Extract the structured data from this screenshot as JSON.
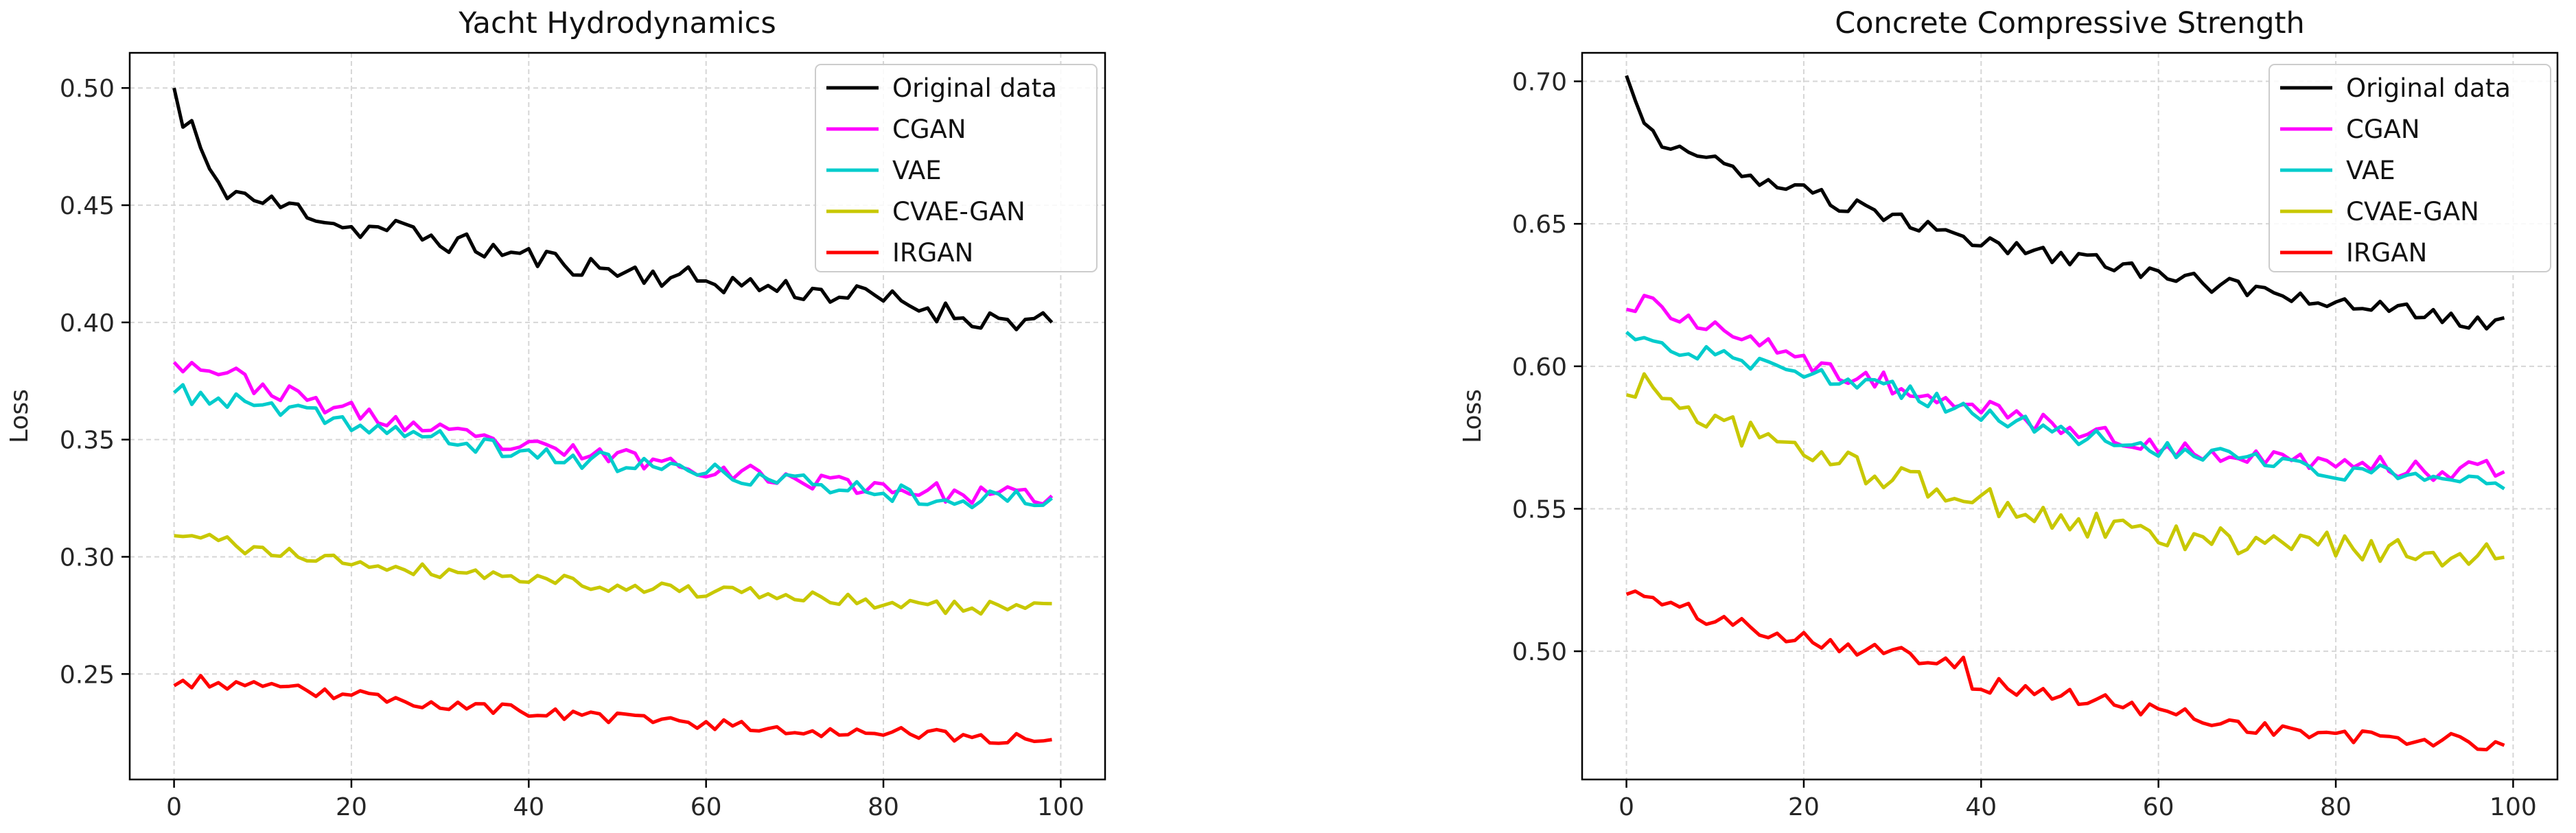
{
  "figure": {
    "description_free": true
  },
  "chart_data": [
    {
      "type": "line",
      "title": "Yacht Hydrodynamics",
      "xlabel": "",
      "ylabel": "Loss",
      "xlim": [
        -5,
        105
      ],
      "ylim": [
        0.205,
        0.515
      ],
      "xticks": [
        0,
        20,
        40,
        60,
        80,
        100
      ],
      "xtick_labels": [
        "0",
        "20",
        "40",
        "60",
        "80",
        "100"
      ],
      "yticks": [
        0.25,
        0.3,
        0.35,
        0.4,
        0.45,
        0.5
      ],
      "ytick_labels": [
        "0.25",
        "0.30",
        "0.35",
        "0.40",
        "0.45",
        "0.50"
      ],
      "grid": true,
      "legend_position": "top-right",
      "series": [
        {
          "name": "Original data",
          "color": "#000000",
          "start": 0.5,
          "end": 0.4,
          "amplitude": 0.005,
          "seed": 11,
          "anchors": [
            [
              0,
              0.5
            ],
            [
              1,
              0.483
            ],
            [
              2,
              0.485
            ],
            [
              4,
              0.462
            ],
            [
              6,
              0.457
            ],
            [
              10,
              0.451
            ],
            [
              15,
              0.448
            ],
            [
              20,
              0.44
            ],
            [
              25,
              0.44
            ],
            [
              30,
              0.435
            ],
            [
              40,
              0.428
            ],
            [
              50,
              0.422
            ],
            [
              60,
              0.418
            ],
            [
              70,
              0.414
            ],
            [
              80,
              0.41
            ],
            [
              90,
              0.402
            ],
            [
              99,
              0.4
            ]
          ]
        },
        {
          "name": "CGAN",
          "color": "#ff00ff",
          "start": 0.383,
          "end": 0.325,
          "amplitude": 0.004,
          "seed": 23,
          "anchors": [
            [
              0,
              0.383
            ],
            [
              5,
              0.38
            ],
            [
              10,
              0.372
            ],
            [
              20,
              0.362
            ],
            [
              30,
              0.353
            ],
            [
              40,
              0.346
            ],
            [
              50,
              0.343
            ],
            [
              60,
              0.338
            ],
            [
              70,
              0.333
            ],
            [
              80,
              0.33
            ],
            [
              90,
              0.326
            ],
            [
              99,
              0.326
            ]
          ]
        },
        {
          "name": "VAE",
          "color": "#00cccc",
          "start": 0.37,
          "end": 0.325,
          "amplitude": 0.004,
          "seed": 37,
          "anchors": [
            [
              0,
              0.37
            ],
            [
              5,
              0.367
            ],
            [
              10,
              0.364
            ],
            [
              20,
              0.357
            ],
            [
              30,
              0.35
            ],
            [
              40,
              0.344
            ],
            [
              50,
              0.34
            ],
            [
              60,
              0.336
            ],
            [
              70,
              0.332
            ],
            [
              80,
              0.328
            ],
            [
              90,
              0.324
            ],
            [
              99,
              0.325
            ]
          ]
        },
        {
          "name": "CVAE-GAN",
          "color": "#c8c800",
          "start": 0.309,
          "end": 0.28,
          "amplitude": 0.003,
          "seed": 41,
          "anchors": [
            [
              0,
              0.309
            ],
            [
              5,
              0.307
            ],
            [
              10,
              0.302
            ],
            [
              20,
              0.298
            ],
            [
              30,
              0.294
            ],
            [
              40,
              0.291
            ],
            [
              50,
              0.288
            ],
            [
              60,
              0.285
            ],
            [
              70,
              0.283
            ],
            [
              80,
              0.28
            ],
            [
              90,
              0.278
            ],
            [
              99,
              0.28
            ]
          ]
        },
        {
          "name": "IRGAN",
          "color": "#ff0000",
          "start": 0.245,
          "end": 0.222,
          "amplitude": 0.0025,
          "seed": 53,
          "anchors": [
            [
              0,
              0.245
            ],
            [
              3,
              0.247
            ],
            [
              10,
              0.244
            ],
            [
              20,
              0.241
            ],
            [
              30,
              0.237
            ],
            [
              40,
              0.234
            ],
            [
              50,
              0.231
            ],
            [
              60,
              0.229
            ],
            [
              70,
              0.226
            ],
            [
              80,
              0.225
            ],
            [
              90,
              0.223
            ],
            [
              99,
              0.222
            ]
          ]
        }
      ]
    },
    {
      "type": "line",
      "title": "Concrete Compressive Strength",
      "xlabel": "",
      "ylabel": "Loss",
      "xlim": [
        -5,
        105
      ],
      "ylim": [
        0.455,
        0.71
      ],
      "xticks": [
        0,
        20,
        40,
        60,
        80,
        100
      ],
      "xtick_labels": [
        "0",
        "20",
        "40",
        "60",
        "80",
        "100"
      ],
      "yticks": [
        0.5,
        0.55,
        0.6,
        0.65,
        0.7
      ],
      "ytick_labels": [
        "0.50",
        "0.55",
        "0.60",
        "0.65",
        "0.70"
      ],
      "grid": true,
      "legend_position": "top-right",
      "series": [
        {
          "name": "Original data",
          "color": "#000000",
          "start": 0.702,
          "end": 0.617,
          "amplitude": 0.003,
          "seed": 61,
          "anchors": [
            [
              0,
              0.702
            ],
            [
              1,
              0.692
            ],
            [
              2,
              0.683
            ],
            [
              5,
              0.678
            ],
            [
              10,
              0.672
            ],
            [
              15,
              0.664
            ],
            [
              20,
              0.661
            ],
            [
              30,
              0.652
            ],
            [
              40,
              0.644
            ],
            [
              50,
              0.638
            ],
            [
              60,
              0.632
            ],
            [
              70,
              0.627
            ],
            [
              80,
              0.622
            ],
            [
              90,
              0.619
            ],
            [
              95,
              0.615
            ],
            [
              99,
              0.617
            ]
          ]
        },
        {
          "name": "CGAN",
          "color": "#ff00ff",
          "start": 0.62,
          "end": 0.563,
          "amplitude": 0.004,
          "seed": 71,
          "anchors": [
            [
              0,
              0.62
            ],
            [
              2,
              0.624
            ],
            [
              10,
              0.612
            ],
            [
              20,
              0.602
            ],
            [
              30,
              0.594
            ],
            [
              40,
              0.585
            ],
            [
              50,
              0.578
            ],
            [
              60,
              0.572
            ],
            [
              70,
              0.568
            ],
            [
              80,
              0.565
            ],
            [
              90,
              0.564
            ],
            [
              99,
              0.563
            ]
          ]
        },
        {
          "name": "VAE",
          "color": "#00cccc",
          "start": 0.612,
          "end": 0.557,
          "amplitude": 0.003,
          "seed": 83,
          "anchors": [
            [
              0,
              0.612
            ],
            [
              5,
              0.606
            ],
            [
              10,
              0.604
            ],
            [
              20,
              0.598
            ],
            [
              30,
              0.592
            ],
            [
              40,
              0.583
            ],
            [
              50,
              0.576
            ],
            [
              60,
              0.571
            ],
            [
              70,
              0.567
            ],
            [
              80,
              0.563
            ],
            [
              90,
              0.562
            ],
            [
              99,
              0.557
            ]
          ]
        },
        {
          "name": "CVAE-GAN",
          "color": "#c8c800",
          "start": 0.59,
          "end": 0.533,
          "amplitude": 0.005,
          "seed": 97,
          "anchors": [
            [
              0,
              0.59
            ],
            [
              2,
              0.594
            ],
            [
              10,
              0.58
            ],
            [
              20,
              0.57
            ],
            [
              30,
              0.561
            ],
            [
              40,
              0.553
            ],
            [
              50,
              0.545
            ],
            [
              60,
              0.54
            ],
            [
              70,
              0.538
            ],
            [
              80,
              0.537
            ],
            [
              90,
              0.535
            ],
            [
              99,
              0.533
            ]
          ]
        },
        {
          "name": "IRGAN",
          "color": "#ff0000",
          "start": 0.52,
          "end": 0.467,
          "amplitude": 0.003,
          "seed": 101,
          "anchors": [
            [
              0,
              0.52
            ],
            [
              2,
              0.519
            ],
            [
              10,
              0.511
            ],
            [
              20,
              0.505
            ],
            [
              30,
              0.499
            ],
            [
              38,
              0.497
            ],
            [
              39,
              0.489
            ],
            [
              50,
              0.484
            ],
            [
              60,
              0.479
            ],
            [
              70,
              0.474
            ],
            [
              80,
              0.47
            ],
            [
              90,
              0.469
            ],
            [
              99,
              0.467
            ]
          ]
        }
      ]
    }
  ]
}
